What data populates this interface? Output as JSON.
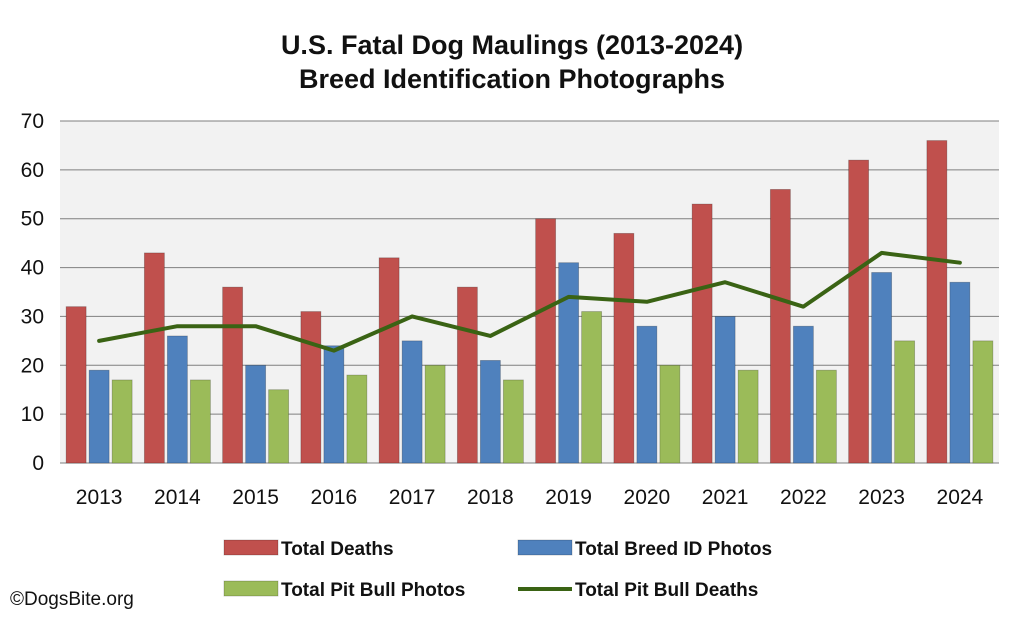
{
  "chart_data": {
    "type": "bar",
    "title": "U.S. Fatal Dog Maulings (2013-2024)",
    "subtitle": "Breed Identification Photographs",
    "categories": [
      "2013",
      "2014",
      "2015",
      "2016",
      "2017",
      "2018",
      "2019",
      "2020",
      "2021",
      "2022",
      "2023",
      "2024"
    ],
    "ylim": [
      0,
      70
    ],
    "yticks": [
      0,
      10,
      20,
      30,
      40,
      50,
      60,
      70
    ],
    "grid": true,
    "legend_position": "bottom",
    "series": [
      {
        "name": "Total Deaths",
        "kind": "bar",
        "color": "#c0504d",
        "values": [
          32,
          43,
          36,
          31,
          42,
          36,
          50,
          47,
          53,
          56,
          62,
          66
        ]
      },
      {
        "name": "Total Breed ID Photos",
        "kind": "bar",
        "color": "#4f81bd",
        "values": [
          19,
          26,
          20,
          24,
          25,
          21,
          41,
          28,
          30,
          28,
          39,
          37
        ]
      },
      {
        "name": "Total Pit Bull Photos",
        "kind": "bar",
        "color": "#9bbb59",
        "values": [
          17,
          17,
          15,
          18,
          20,
          17,
          31,
          20,
          19,
          19,
          25,
          25
        ]
      },
      {
        "name": "Total Pit Bull Deaths",
        "kind": "line",
        "color": "#3a6314",
        "values": [
          25,
          28,
          28,
          23,
          30,
          26,
          34,
          33,
          37,
          32,
          43,
          41
        ]
      }
    ]
  },
  "credit": "©DogsBite.org"
}
